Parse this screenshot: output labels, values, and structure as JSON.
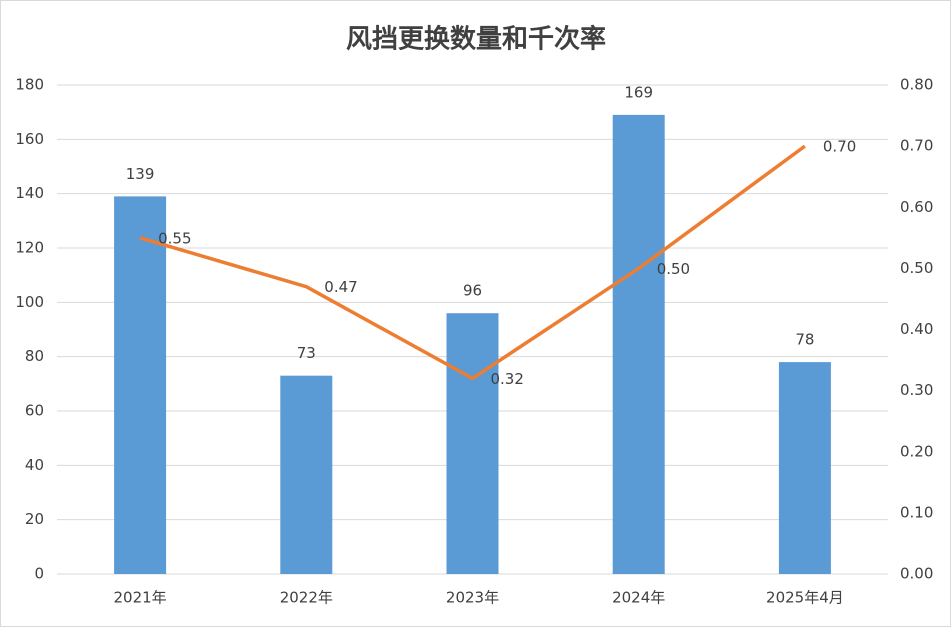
{
  "chart_data": {
    "type": "bar",
    "title": "风挡更换数量和千次率",
    "categories": [
      "2021年",
      "2022年",
      "2023年",
      "2024年",
      "2025年4月"
    ],
    "series": [
      {
        "type": "bar",
        "color": "#5b9bd5",
        "values": [
          139,
          73,
          96,
          169,
          78
        ]
      },
      {
        "type": "line",
        "axis": "y2",
        "color": "#ed7d31",
        "values": [
          0.55,
          0.47,
          0.32,
          0.5,
          0.7
        ],
        "value_labels": [
          "0.55",
          "0.47",
          "0.32",
          "0.50",
          "0.70"
        ]
      }
    ],
    "ylim": [
      0,
      180
    ],
    "yticks": [
      0,
      20,
      40,
      60,
      80,
      100,
      120,
      140,
      160,
      180
    ],
    "y2lim": [
      0,
      0.8
    ],
    "y2ticks": [
      {
        "value": 0,
        "label": "0.00"
      },
      {
        "value": 0.1,
        "label": "0.10"
      },
      {
        "value": 0.2,
        "label": "0.20"
      },
      {
        "value": 0.3,
        "label": "0.30"
      },
      {
        "value": 0.4,
        "label": "0.40"
      },
      {
        "value": 0.5,
        "label": "0.50"
      },
      {
        "value": 0.6,
        "label": "0.60"
      },
      {
        "value": 0.7,
        "label": "0.70"
      },
      {
        "value": 0.8,
        "label": "0.80"
      }
    ],
    "grid": true
  }
}
